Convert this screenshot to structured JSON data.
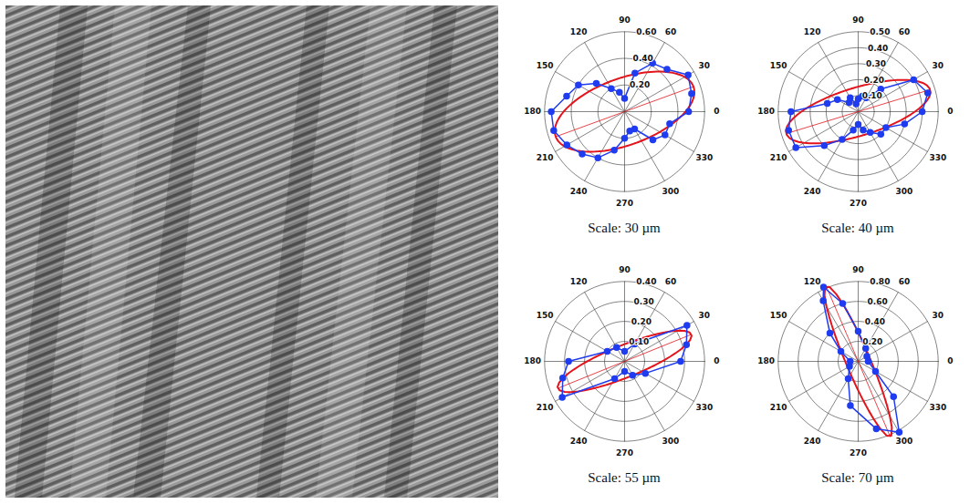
{
  "chart_data": [
    {
      "type": "polar",
      "title": "Scale: 30 µm",
      "rlim": [
        0,
        0.6
      ],
      "rticks": [
        {
          "value": 0.2,
          "label": "0.20"
        },
        {
          "value": 0.4,
          "label": "0.40"
        },
        {
          "value": 0.6,
          "label": "0.60"
        }
      ],
      "thetaticks": [
        0,
        30,
        60,
        90,
        120,
        150,
        180,
        210,
        240,
        270,
        300,
        330
      ],
      "series": [
        {
          "type": "line",
          "marker": "circle",
          "color": "#1f3cf0",
          "theta": [
            0,
            15,
            30,
            45,
            60,
            75,
            90,
            105,
            120,
            135,
            150,
            165,
            180,
            195,
            210,
            225,
            240,
            255,
            270,
            285,
            300,
            315,
            330,
            345
          ],
          "values": [
            0.48,
            0.52,
            0.55,
            0.45,
            0.42,
            0.3,
            0.1,
            0.15,
            0.2,
            0.3,
            0.4,
            0.45,
            0.55,
            0.55,
            0.5,
            0.45,
            0.4,
            0.3,
            0.2,
            0.15,
            0.15,
            0.3,
            0.35,
            0.35
          ]
        }
      ],
      "fit": {
        "color": "#e3141b",
        "semi_major": 0.55,
        "semi_minor": 0.25,
        "angle": 20
      }
    },
    {
      "type": "polar",
      "title": "Scale: 40 µm",
      "rlim": [
        0,
        0.5
      ],
      "rticks": [
        {
          "value": 0.1,
          "label": "0.10"
        },
        {
          "value": 0.2,
          "label": "0.20"
        },
        {
          "value": 0.3,
          "label": "0.30"
        },
        {
          "value": 0.4,
          "label": "0.40"
        },
        {
          "value": 0.5,
          "label": "0.50"
        }
      ],
      "thetaticks": [
        0,
        30,
        60,
        90,
        120,
        150,
        180,
        210,
        240,
        270,
        300,
        330
      ],
      "series": [
        {
          "type": "line",
          "marker": "circle",
          "color": "#1f3cf0",
          "theta": [
            0,
            15,
            30,
            45,
            60,
            75,
            90,
            105,
            120,
            135,
            150,
            165,
            180,
            195,
            210,
            225,
            240,
            255,
            270,
            285,
            300,
            315,
            330,
            345
          ],
          "values": [
            0.4,
            0.45,
            0.4,
            0.2,
            0.1,
            0.1,
            0.08,
            0.05,
            0.1,
            0.08,
            0.15,
            0.2,
            0.42,
            0.45,
            0.45,
            0.3,
            0.2,
            0.12,
            0.08,
            0.12,
            0.15,
            0.2,
            0.2,
            0.3
          ]
        }
      ],
      "fit": {
        "color": "#e3141b",
        "semi_major": 0.47,
        "semi_minor": 0.15,
        "angle": 17
      }
    },
    {
      "type": "polar",
      "title": "Scale: 55 µm",
      "rlim": [
        0,
        0.4
      ],
      "rticks": [
        {
          "value": 0.1,
          "label": "0.10"
        },
        {
          "value": 0.2,
          "label": "0.20"
        },
        {
          "value": 0.3,
          "label": "0.30"
        },
        {
          "value": 0.4,
          "label": "0.40"
        }
      ],
      "thetaticks": [
        0,
        30,
        60,
        90,
        120,
        150,
        180,
        210,
        240,
        270,
        300,
        330
      ],
      "series": [
        {
          "type": "line",
          "marker": "circle",
          "color": "#1f3cf0",
          "theta": [
            0,
            15,
            30,
            60,
            90,
            120,
            150,
            180,
            195,
            210,
            240,
            270,
            300,
            330
          ],
          "values": [
            0.28,
            0.32,
            0.36,
            0.1,
            0.05,
            0.08,
            0.1,
            0.28,
            0.32,
            0.36,
            0.1,
            0.05,
            0.08,
            0.12
          ]
        }
      ],
      "fit": {
        "color": "#e3141b",
        "semi_major": 0.36,
        "semi_minor": 0.08,
        "angle": 22
      }
    },
    {
      "type": "polar",
      "title": "Scale: 70 µm",
      "rlim": [
        0,
        0.8
      ],
      "rticks": [
        {
          "value": 0.2,
          "label": "0.20"
        },
        {
          "value": 0.4,
          "label": "0.40"
        },
        {
          "value": 0.6,
          "label": "0.60"
        },
        {
          "value": 0.8,
          "label": "0.80"
        }
      ],
      "thetaticks": [
        0,
        30,
        60,
        90,
        120,
        150,
        180,
        210,
        240,
        270,
        300,
        330
      ],
      "series": [
        {
          "type": "line",
          "marker": "circle",
          "color": "#1f3cf0",
          "theta": [
            0,
            30,
            60,
            90,
            105,
            115,
            120,
            135,
            150,
            180,
            210,
            240,
            260,
            285,
            300,
            315,
            330
          ],
          "values": [
            0.1,
            0.1,
            0.15,
            0.3,
            0.6,
            0.82,
            0.7,
            0.4,
            0.2,
            0.08,
            0.1,
            0.2,
            0.45,
            0.7,
            0.82,
            0.5,
            0.2
          ]
        }
      ],
      "fit": {
        "color": "#e3141b",
        "semi_major": 0.82,
        "semi_minor": 0.12,
        "angle": 113
      }
    }
  ]
}
